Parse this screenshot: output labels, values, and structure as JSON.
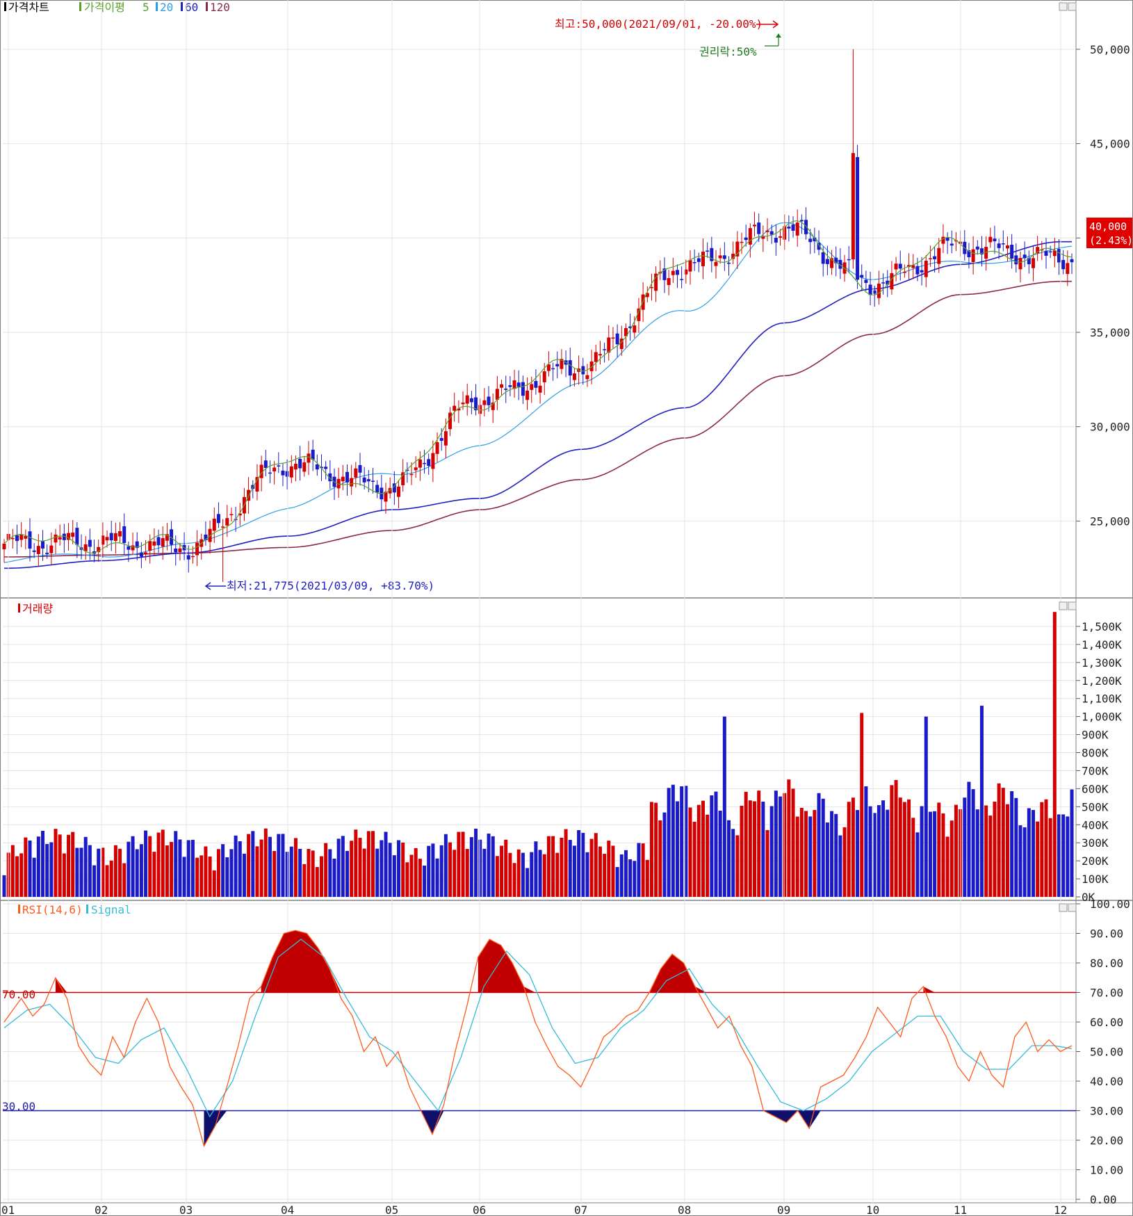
{
  "colors": {
    "up": "#d40000",
    "down": "#1a1ac8",
    "ma5": "#5aa02c",
    "ma20": "#2e9ee8",
    "ma60": "#2020c0",
    "ma120": "#8a2a4a",
    "rsi": "#ff5a1e",
    "signal": "#33bcd8",
    "grid": "#e4e4e4",
    "border": "#808080"
  },
  "price_panel": {
    "legend": {
      "title": "가격차트",
      "ma_label": "가격이평",
      "ma5": "5",
      "ma20": "20",
      "ma60": "60",
      "ma120": "120"
    },
    "high_note": "최고:50,000(2021/09/01, -20.00%)",
    "low_note": "최저:21,775(2021/03/09, +83.70%)",
    "rights_note": "권리락:50%",
    "current_price": "40,000",
    "current_change": "(2.43%)"
  },
  "volume_panel": {
    "legend": "거래량"
  },
  "rsi_panel": {
    "legend_rsi": "RSI(14,6)",
    "legend_signal": "Signal",
    "line70": "70.00",
    "line30": "30.00"
  },
  "chart_data": [
    {
      "type": "candlestick",
      "title": "가격차트",
      "x_ticks": [
        "01",
        "02",
        "03",
        "04",
        "05",
        "06",
        "07",
        "08",
        "09",
        "10",
        "11",
        "12"
      ],
      "y_ticks": [
        "25,000",
        "30,000",
        "35,000",
        "40,000",
        "45,000",
        "50,000"
      ],
      "ylim": [
        21000,
        51800
      ],
      "series": [
        {
          "name": "5",
          "month_avg": [
            23800,
            23900,
            23600,
            28000,
            26800,
            31500,
            33200,
            38500,
            40500,
            37600,
            39600,
            38900
          ]
        },
        {
          "name": "20",
          "month_avg": [
            22800,
            23300,
            23600,
            25800,
            27600,
            28800,
            32500,
            36200,
            40600,
            38000,
            38600,
            39400
          ]
        },
        {
          "name": "60",
          "month_avg": [
            22500,
            22900,
            23300,
            24200,
            25600,
            26200,
            28800,
            31000,
            35500,
            37300,
            38600,
            39800
          ]
        },
        {
          "name": "120",
          "month_avg": [
            23100,
            23200,
            23300,
            23600,
            24500,
            25600,
            27200,
            29400,
            32700,
            34900,
            37000,
            37700
          ]
        }
      ],
      "annotations": [
        "최고:50,000(2021/09/01, -20.00%)",
        "최저:21,775(2021/03/09, +83.70%)",
        "권리락:50%"
      ],
      "last_value": 40000,
      "last_change_pct": 2.43
    },
    {
      "type": "bar",
      "title": "거래량",
      "y_ticks": [
        "0K",
        "100K",
        "200K",
        "300K",
        "400K",
        "500K",
        "600K",
        "700K",
        "800K",
        "900K",
        "1,000K",
        "1,100K",
        "1,200K",
        "1,300K",
        "1,400K",
        "1,500K"
      ],
      "ylim": [
        0,
        1600000
      ],
      "peaks": [
        {
          "month": "08",
          "value": 1000000
        },
        {
          "month": "09",
          "value": 1020000
        },
        {
          "month": "09",
          "value": 1000000
        },
        {
          "month": "10",
          "value": 1060000
        },
        {
          "month": "11",
          "value": 1580000
        }
      ]
    },
    {
      "type": "line",
      "title": "RSI(14,6)",
      "y_ticks": [
        "0.00",
        "10.00",
        "20.00",
        "30.00",
        "40.00",
        "50.00",
        "60.00",
        "70.00",
        "80.00",
        "90.00",
        "100.00"
      ],
      "ylim": [
        0,
        100
      ],
      "series": [
        {
          "name": "RSI(14,6)",
          "points": [
            [
              0,
              60
            ],
            [
              3,
              68
            ],
            [
              5,
              62
            ],
            [
              7,
              66
            ],
            [
              9,
              75
            ],
            [
              11,
              68
            ],
            [
              13,
              52
            ],
            [
              15,
              46
            ],
            [
              17,
              42
            ],
            [
              19,
              55
            ],
            [
              21,
              48
            ],
            [
              23,
              60
            ],
            [
              25,
              68
            ],
            [
              27,
              60
            ],
            [
              29,
              45
            ],
            [
              31,
              38
            ],
            [
              33,
              32
            ],
            [
              35,
              18
            ],
            [
              37,
              25
            ],
            [
              39,
              38
            ],
            [
              41,
              52
            ],
            [
              43,
              68
            ],
            [
              45,
              72
            ],
            [
              47,
              82
            ],
            [
              49,
              90
            ],
            [
              51,
              91
            ],
            [
              53,
              90
            ],
            [
              55,
              85
            ],
            [
              57,
              78
            ],
            [
              59,
              68
            ],
            [
              61,
              62
            ],
            [
              63,
              50
            ],
            [
              65,
              55
            ],
            [
              67,
              45
            ],
            [
              69,
              50
            ],
            [
              71,
              38
            ],
            [
              73,
              30
            ],
            [
              75,
              22
            ],
            [
              77,
              32
            ],
            [
              79,
              50
            ],
            [
              81,
              65
            ],
            [
              83,
              82
            ],
            [
              85,
              88
            ],
            [
              87,
              86
            ],
            [
              89,
              80
            ],
            [
              91,
              72
            ],
            [
              93,
              60
            ],
            [
              95,
              52
            ],
            [
              97,
              45
            ],
            [
              99,
              42
            ],
            [
              101,
              38
            ],
            [
              103,
              46
            ],
            [
              105,
              55
            ],
            [
              107,
              58
            ],
            [
              109,
              62
            ],
            [
              111,
              64
            ],
            [
              113,
              70
            ],
            [
              115,
              78
            ],
            [
              117,
              83
            ],
            [
              119,
              80
            ],
            [
              121,
              72
            ],
            [
              123,
              65
            ],
            [
              125,
              58
            ],
            [
              127,
              62
            ],
            [
              129,
              52
            ],
            [
              131,
              45
            ],
            [
              133,
              30
            ],
            [
              135,
              28
            ],
            [
              137,
              26
            ],
            [
              139,
              30
            ],
            [
              141,
              24
            ],
            [
              143,
              38
            ],
            [
              145,
              40
            ],
            [
              147,
              42
            ],
            [
              149,
              48
            ],
            [
              151,
              55
            ],
            [
              153,
              65
            ],
            [
              155,
              60
            ],
            [
              157,
              55
            ],
            [
              159,
              68
            ],
            [
              161,
              72
            ],
            [
              163,
              62
            ],
            [
              165,
              55
            ],
            [
              167,
              45
            ],
            [
              169,
              40
            ],
            [
              171,
              50
            ],
            [
              173,
              42
            ],
            [
              175,
              38
            ],
            [
              177,
              55
            ],
            [
              179,
              60
            ],
            [
              181,
              50
            ],
            [
              183,
              54
            ],
            [
              185,
              50
            ],
            [
              187,
              52
            ]
          ]
        },
        {
          "name": "Signal",
          "points": [
            [
              0,
              58
            ],
            [
              4,
              64
            ],
            [
              8,
              66
            ],
            [
              12,
              58
            ],
            [
              16,
              48
            ],
            [
              20,
              46
            ],
            [
              24,
              54
            ],
            [
              28,
              58
            ],
            [
              32,
              44
            ],
            [
              36,
              28
            ],
            [
              40,
              40
            ],
            [
              44,
              62
            ],
            [
              48,
              82
            ],
            [
              52,
              88
            ],
            [
              56,
              82
            ],
            [
              60,
              68
            ],
            [
              64,
              55
            ],
            [
              68,
              50
            ],
            [
              72,
              40
            ],
            [
              76,
              30
            ],
            [
              80,
              48
            ],
            [
              84,
              72
            ],
            [
              88,
              84
            ],
            [
              92,
              76
            ],
            [
              96,
              58
            ],
            [
              100,
              46
            ],
            [
              104,
              48
            ],
            [
              108,
              58
            ],
            [
              112,
              64
            ],
            [
              116,
              74
            ],
            [
              120,
              78
            ],
            [
              124,
              66
            ],
            [
              128,
              58
            ],
            [
              132,
              45
            ],
            [
              136,
              33
            ],
            [
              140,
              30
            ],
            [
              144,
              34
            ],
            [
              148,
              40
            ],
            [
              152,
              50
            ],
            [
              156,
              56
            ],
            [
              160,
              62
            ],
            [
              164,
              62
            ],
            [
              168,
              50
            ],
            [
              172,
              44
            ],
            [
              176,
              44
            ],
            [
              180,
              52
            ],
            [
              184,
              52
            ],
            [
              187,
              51
            ]
          ]
        }
      ],
      "reference_lines": [
        70,
        30
      ]
    }
  ]
}
